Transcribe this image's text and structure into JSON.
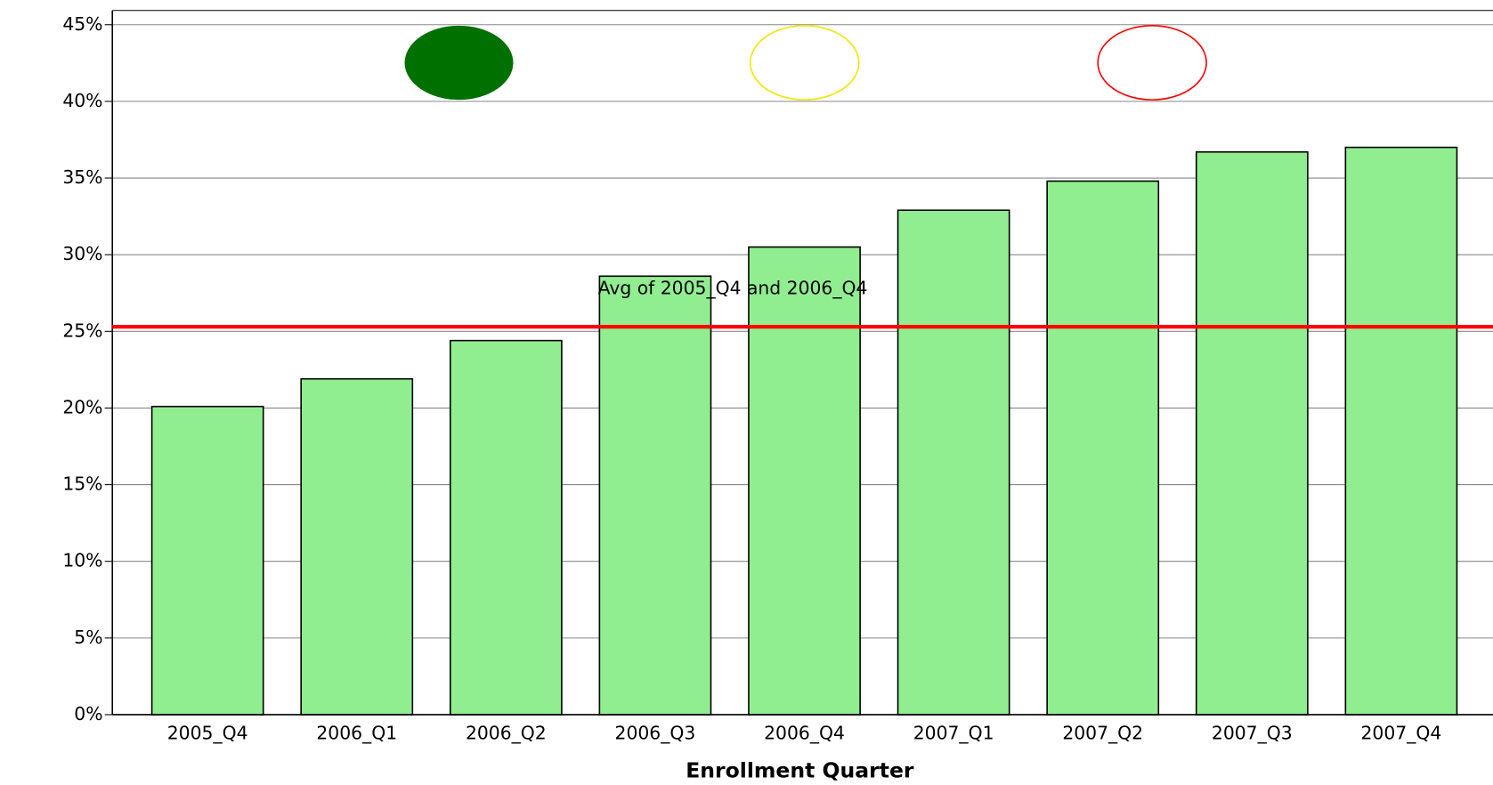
{
  "chart_data": {
    "type": "bar",
    "x_label": "Enrollment Quarter",
    "categories": [
      "2005_Q4",
      "2006_Q1",
      "2006_Q2",
      "2006_Q3",
      "2006_Q4",
      "2007_Q1",
      "2007_Q2",
      "2007_Q3",
      "2007_Q4"
    ],
    "values": [
      20.1,
      21.9,
      24.4,
      28.6,
      30.5,
      32.9,
      34.8,
      36.7,
      37.0
    ],
    "color": "#90ee90",
    "ylim": [
      0,
      45
    ],
    "yticks": [
      {
        "value": 0,
        "label": "0%"
      },
      {
        "value": 5,
        "label": "5%"
      },
      {
        "value": 10,
        "label": "10%"
      },
      {
        "value": 15,
        "label": "15%"
      },
      {
        "value": 20,
        "label": "20%"
      },
      {
        "value": 25,
        "label": "25%"
      },
      {
        "value": 30,
        "label": "30%"
      },
      {
        "value": 35,
        "label": "35%"
      },
      {
        "value": 40,
        "label": "40%"
      },
      {
        "value": 45,
        "label": "45%"
      }
    ],
    "grid": true,
    "reference_line": {
      "value": 25.3,
      "label": "Avg of 2005_Q4 and 2006_Q4",
      "color": "#ff0000"
    }
  }
}
